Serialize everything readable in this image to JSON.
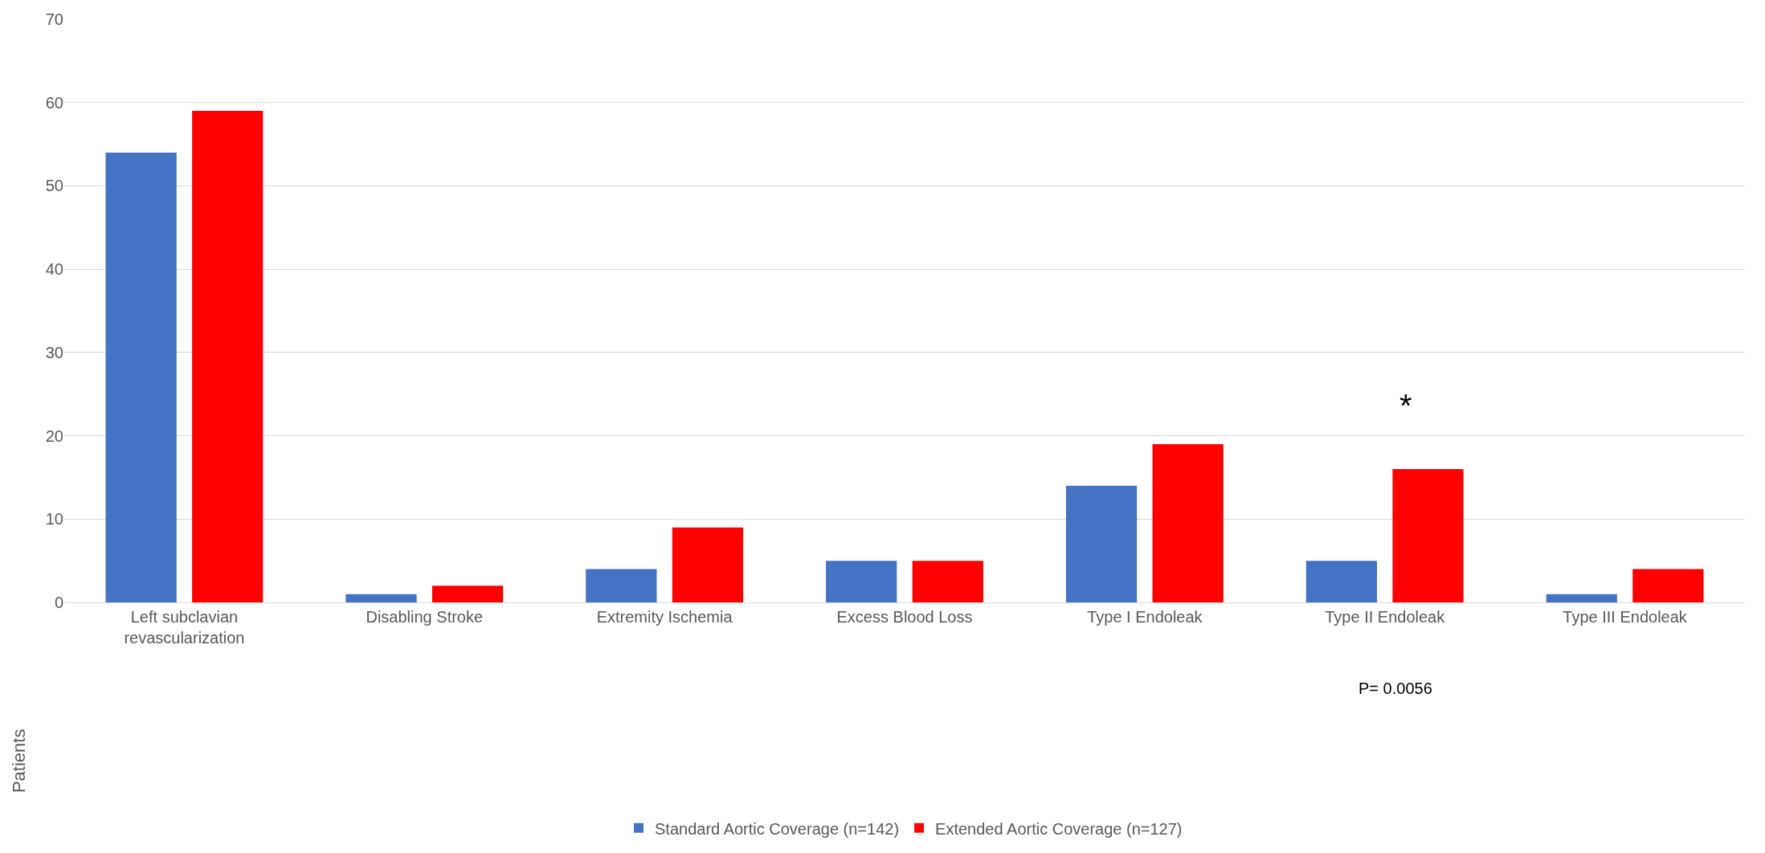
{
  "chart_data": {
    "type": "bar",
    "categories": [
      "Left subclavian revascularization",
      "Disabling Stroke",
      "Extremity Ischemia",
      "Excess Blood Loss",
      "Type I Endoleak",
      "Type II Endoleak",
      "Type III Endoleak"
    ],
    "series": [
      {
        "name": "Standard Aortic Coverage (n=142)",
        "color": "#4472c4",
        "values": [
          54,
          1,
          4,
          5,
          14,
          5,
          1
        ]
      },
      {
        "name": "Extended Aortic Coverage (n=127)",
        "color": "#ff0000",
        "values": [
          59,
          2,
          9,
          5,
          19,
          16,
          4
        ]
      }
    ],
    "ylim": [
      0,
      70
    ],
    "yticks": [
      0,
      10,
      20,
      30,
      40,
      50,
      60,
      70
    ],
    "grid": "y",
    "legend": "bottom",
    "annotations": [
      "*",
      "P= 0.0056",
      "Patients"
    ]
  }
}
